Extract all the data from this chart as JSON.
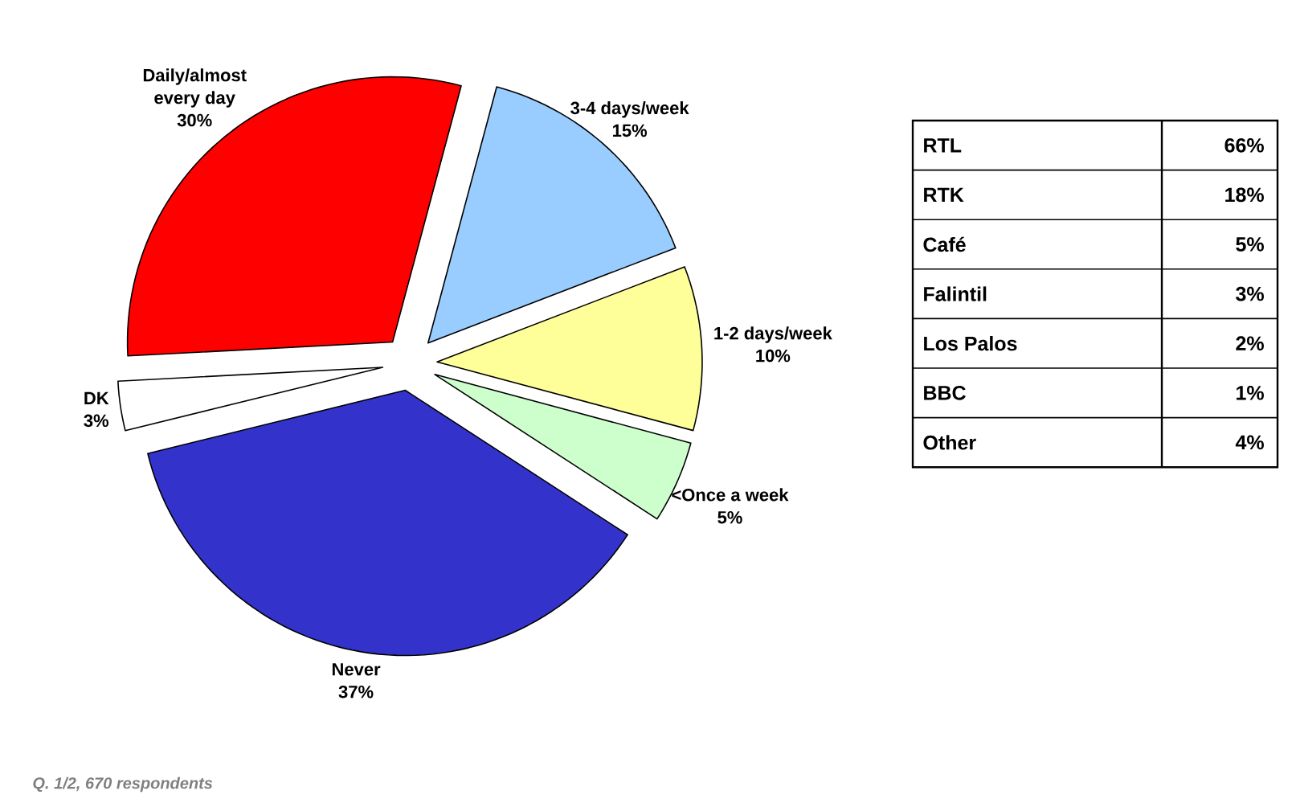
{
  "chart_data": [
    {
      "type": "pie",
      "categories": [
        "Daily/almost every day",
        "3-4 days/week",
        "1-2 days/week",
        "<Once a week",
        "Never",
        "DK"
      ],
      "values": [
        30,
        15,
        10,
        5,
        37,
        3
      ],
      "value_labels": [
        "30%",
        "15%",
        "10%",
        "5%",
        "37%",
        "3%"
      ],
      "colors": [
        "#ff0000",
        "#99ccff",
        "#ffff99",
        "#ccffcc",
        "#3333cc",
        "#ffffff"
      ],
      "annotations": [
        "Q. 1/2, 670 respondents"
      ]
    },
    {
      "type": "other",
      "categories": [
        "RTL",
        "RTK",
        "Café",
        "Falintil",
        "Los Palos",
        "BBC",
        "Other"
      ],
      "value_labels": [
        "66%",
        "18%",
        "5%",
        "3%",
        "2%",
        "1%",
        "4%"
      ]
    }
  ]
}
